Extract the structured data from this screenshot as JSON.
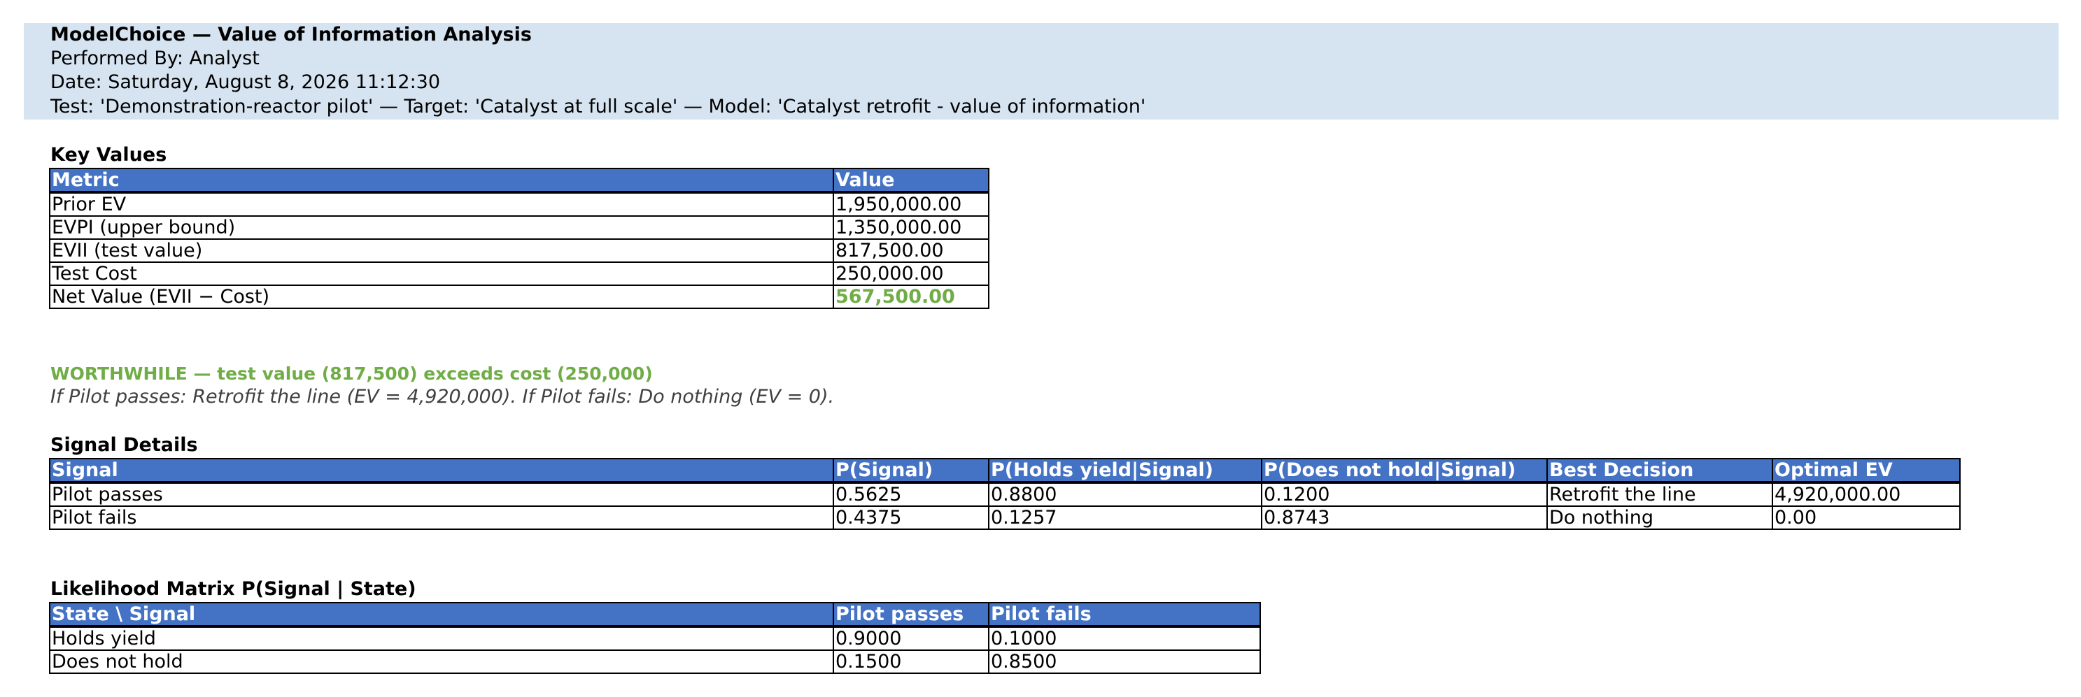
{
  "header": {
    "title": "ModelChoice — Value of Information Analysis",
    "performed_by": "Performed By: Analyst",
    "date": "Date: Saturday, August 8, 2026 11:12:30",
    "test_line": "Test: 'Demonstration-reactor pilot' — Target: 'Catalyst at full scale' — Model: 'Catalyst retrofit - value of information'",
    "band_color": "#d6e3f0"
  },
  "key_values": {
    "title": "Key Values",
    "columns": [
      "Metric",
      "Value"
    ],
    "rows": [
      {
        "metric": "Prior EV",
        "value": "1,950,000.00"
      },
      {
        "metric": "EVPI (upper bound)",
        "value": "1,350,000.00"
      },
      {
        "metric": "EVII (test value)",
        "value": "817,500.00"
      },
      {
        "metric": "Test Cost",
        "value": "250,000.00"
      },
      {
        "metric": "Net Value (EVII − Cost)",
        "value": "567,500.00"
      }
    ]
  },
  "verdict": "WORTHWHILE — test value (817,500) exceeds cost (250,000)",
  "policy": "If Pilot passes: Retrofit the line (EV = 4,920,000).  If Pilot fails: Do nothing (EV = 0).",
  "signal_details": {
    "title": "Signal Details",
    "columns": [
      "Signal",
      "P(Signal)",
      "P(Holds yield|Signal)",
      "P(Does not hold|Signal)",
      "Best Decision",
      "Optimal EV"
    ],
    "rows": [
      [
        "Pilot passes",
        "0.5625",
        "0.8800",
        "0.1200",
        "Retrofit the line",
        "4,920,000.00"
      ],
      [
        "Pilot fails",
        "0.4375",
        "0.1257",
        "0.8743",
        "Do nothing",
        "0.00"
      ]
    ]
  },
  "likelihood": {
    "title": "Likelihood Matrix  P(Signal | State)",
    "columns": [
      "State \\ Signal",
      "Pilot passes",
      "Pilot fails"
    ],
    "rows": [
      [
        "Holds yield",
        "0.9000",
        "0.1000"
      ],
      [
        "Does not hold",
        "0.1500",
        "0.8500"
      ]
    ]
  },
  "colors": {
    "table_header_bg": "#4472c4",
    "table_header_text": "#ffffff",
    "positive": "#70ad47",
    "policy_text": "#404040"
  }
}
